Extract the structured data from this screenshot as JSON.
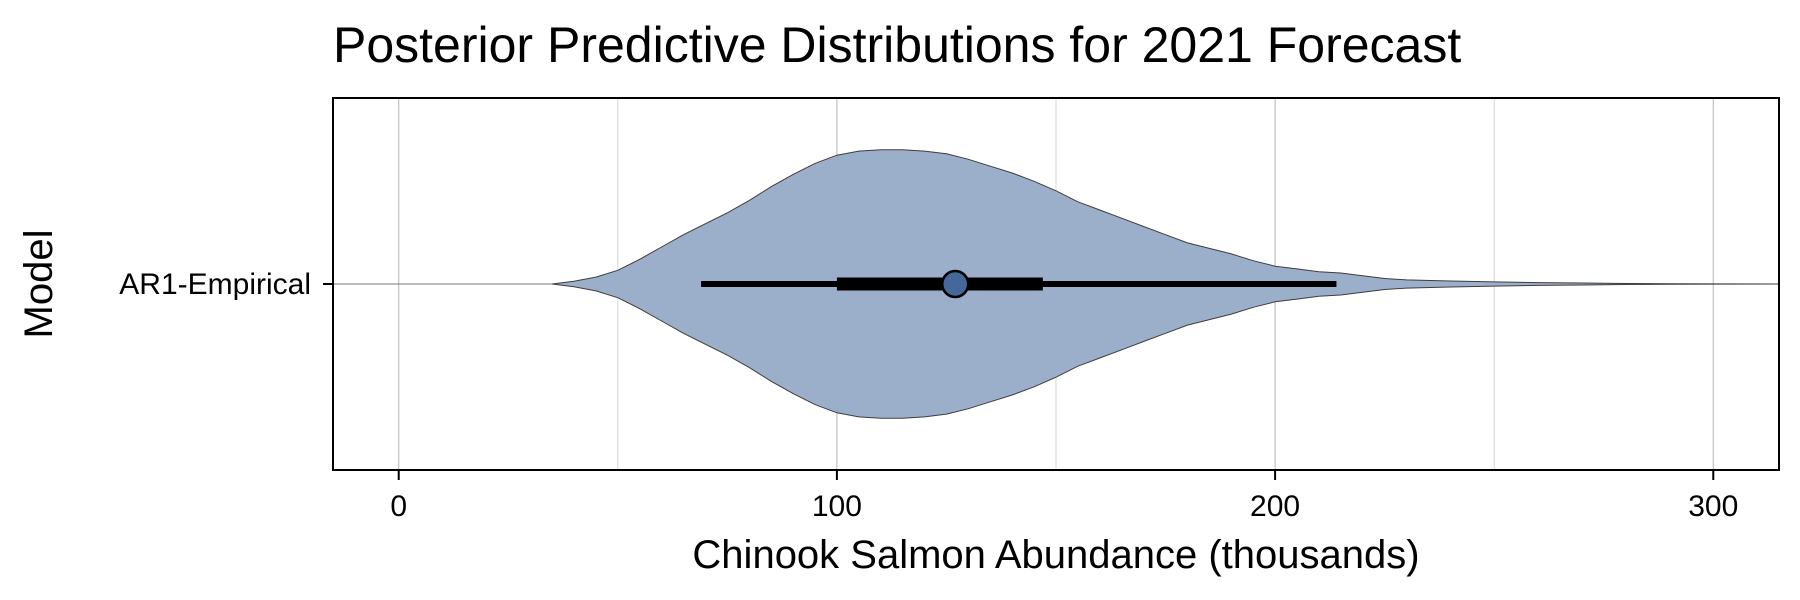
{
  "chart_data": {
    "type": "violin",
    "orientation": "horizontal",
    "title": "Posterior Predictive Distributions for 2021 Forecast",
    "xlabel": "Chinook Salmon Abundance (thousands)",
    "ylabel": "Model",
    "xlim": [
      -15,
      315
    ],
    "x_ticks": [
      0,
      100,
      200,
      300
    ],
    "x_tick_labels": [
      "0",
      "100",
      "200",
      "300"
    ],
    "x_minor_gridlines": [
      50,
      150,
      250
    ],
    "grid": true,
    "categories": [
      "AR1-Empirical"
    ],
    "series": [
      {
        "category": "AR1-Empirical",
        "density_profile": {
          "x": [
            35,
            40,
            45,
            50,
            55,
            60,
            65,
            70,
            75,
            80,
            85,
            90,
            95,
            100,
            105,
            110,
            115,
            120,
            125,
            130,
            135,
            140,
            145,
            150,
            155,
            160,
            165,
            170,
            175,
            180,
            185,
            190,
            195,
            200,
            205,
            210,
            215,
            220,
            225,
            230,
            240,
            250,
            260,
            270,
            280,
            290,
            300,
            315
          ],
          "half_width": [
            0.0,
            0.02,
            0.05,
            0.1,
            0.18,
            0.27,
            0.36,
            0.44,
            0.52,
            0.61,
            0.71,
            0.8,
            0.88,
            0.94,
            0.97,
            0.98,
            0.98,
            0.97,
            0.95,
            0.91,
            0.86,
            0.81,
            0.75,
            0.68,
            0.6,
            0.54,
            0.48,
            0.42,
            0.36,
            0.3,
            0.26,
            0.22,
            0.17,
            0.13,
            0.11,
            0.09,
            0.08,
            0.06,
            0.04,
            0.03,
            0.022,
            0.015,
            0.01,
            0.007,
            0.004,
            0.002,
            0.001,
            0.0
          ]
        },
        "median": 127,
        "interval_50": [
          100,
          147
        ],
        "interval_95": [
          69,
          214
        ]
      }
    ],
    "colors": {
      "violin_fill": "#9cafca",
      "violin_stroke": "#3d3d3d",
      "point_fill": "#466799",
      "interval": "#000000",
      "grid": "#b5b5b5"
    }
  }
}
